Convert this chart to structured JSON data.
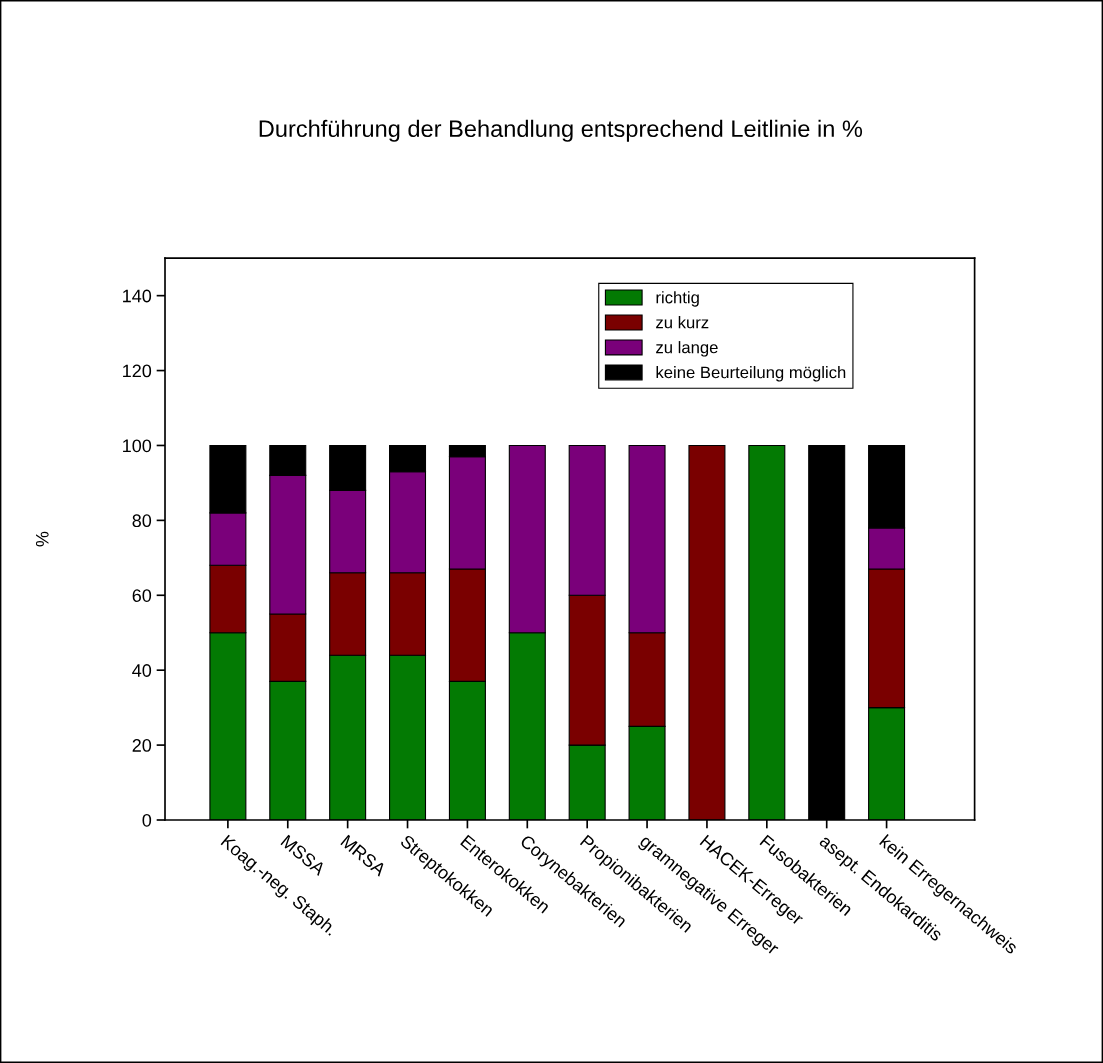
{
  "chart_data": {
    "type": "bar",
    "stacked": true,
    "title": "Durchführung der Behandlung entsprechend Leitlinie in %",
    "ylabel": "%",
    "categories": [
      "Koag.-neg. Staph.",
      "MSSA",
      "MRSA",
      "Streptokokken",
      "Enterokokken",
      "Corynebakterien",
      "Propionibakterien",
      "gramnegative Erreger",
      "HACEK-Erreger",
      "Fusobakterien",
      "asept. Endokarditis",
      "kein Erregernachweis"
    ],
    "series": [
      {
        "name": "richtig",
        "color": "#037a03",
        "values": [
          50,
          37,
          44,
          44,
          37,
          50,
          20,
          25,
          0,
          100,
          0,
          30
        ]
      },
      {
        "name": "zu kurz",
        "color": "#7a0000",
        "values": [
          18,
          18,
          22,
          22,
          30,
          0,
          40,
          25,
          100,
          0,
          0,
          37
        ]
      },
      {
        "name": "zu lange",
        "color": "#7a007a",
        "values": [
          14,
          37,
          22,
          27,
          30,
          50,
          40,
          50,
          0,
          0,
          0,
          11
        ]
      },
      {
        "name": "keine Beurteilung möglich",
        "color": "#000000",
        "values": [
          18,
          8,
          12,
          7,
          3,
          0,
          0,
          0,
          0,
          0,
          100,
          22
        ]
      }
    ],
    "ylim": [
      0,
      150
    ],
    "yticks": [
      0,
      20,
      40,
      60,
      80,
      100,
      120,
      140
    ],
    "grid": false,
    "legend": "top right"
  }
}
